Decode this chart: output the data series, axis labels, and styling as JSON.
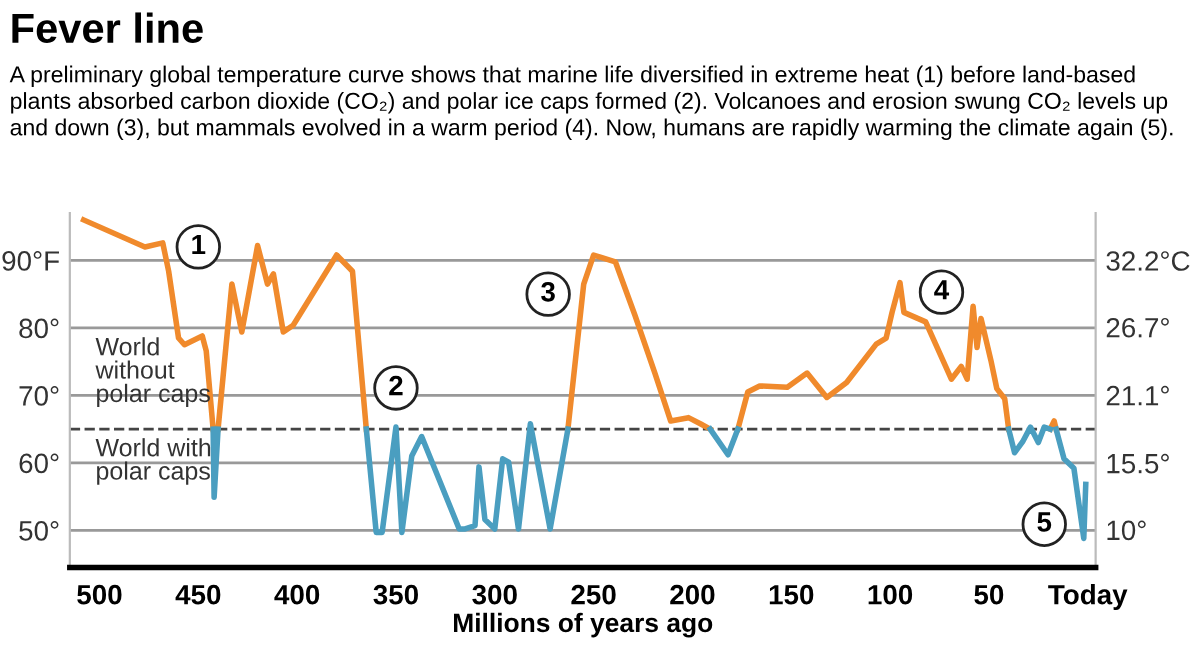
{
  "chart_data": {
    "type": "line",
    "title": "Fever line",
    "subtitle": "A preliminary global temperature curve shows that marine life diversified in extreme heat (1) before land-based plants absorbed carbon dioxide (CO₂) and polar ice caps formed (2). Volcanoes and erosion swung CO₂ levels up and down (3), but mammals evolved in a warm period (4). Now, humans are rapidly warming the climate again (5).",
    "xlabel": "Millions of years ago",
    "x": [
      508,
      477,
      468,
      465,
      460,
      457,
      448,
      446,
      442.5,
      442,
      440,
      433,
      428,
      420,
      415,
      412,
      407,
      402,
      380,
      372,
      365,
      360,
      357,
      350,
      347,
      342,
      337,
      318,
      315,
      310,
      308,
      305,
      300,
      296,
      293,
      288,
      282,
      272,
      263,
      255,
      250,
      239,
      229,
      219,
      211,
      202,
      196,
      191,
      182,
      177,
      172,
      166,
      152,
      142,
      132,
      122,
      107,
      102,
      99,
      95,
      93,
      82,
      69,
      64,
      61,
      58,
      56,
      54,
      49,
      46,
      42,
      40,
      37,
      33,
      29,
      25,
      22,
      19,
      17,
      16,
      12,
      7,
      2,
      1
    ],
    "series": [
      {
        "color": "#f08a2c",
        "values": [
          96,
          92,
          92.6,
          88.4,
          78.5,
          77.5,
          78.8,
          76.6,
          65,
          null,
          65,
          86.5,
          79.4,
          92.2,
          86.5,
          88,
          79.4,
          80.4,
          90.8,
          88.4,
          65,
          null,
          null,
          null,
          null,
          null,
          null,
          null,
          null,
          null,
          null,
          null,
          null,
          null,
          null,
          null,
          null,
          null,
          65,
          86.5,
          90.8,
          89.8,
          81.8,
          73.3,
          66.2,
          66.7,
          65.8,
          65,
          null,
          65,
          70.5,
          71.4,
          71.2,
          73.3,
          69.7,
          71.9,
          77.6,
          78.5,
          82.3,
          86.7,
          82.3,
          80.9,
          72.4,
          74.3,
          72.4,
          83.2,
          77.1,
          81.4,
          75.2,
          71,
          69.5,
          65,
          null,
          null,
          null,
          null,
          null,
          65,
          66.2,
          65,
          null,
          null,
          null,
          null
        ]
      },
      {
        "color": "#4a9ec0",
        "values": [
          null,
          null,
          null,
          null,
          null,
          null,
          null,
          null,
          65,
          54.9,
          65,
          null,
          null,
          null,
          null,
          null,
          null,
          null,
          null,
          null,
          65,
          49.7,
          49.7,
          65.3,
          49.7,
          61,
          63.9,
          50.2,
          50.2,
          50.7,
          59.4,
          51.6,
          50.2,
          60.6,
          60.1,
          50.2,
          65.8,
          50.2,
          65,
          null,
          null,
          null,
          null,
          null,
          null,
          null,
          null,
          65,
          61.2,
          65,
          null,
          null,
          null,
          null,
          null,
          null,
          null,
          null,
          null,
          null,
          null,
          null,
          null,
          null,
          null,
          null,
          null,
          null,
          null,
          null,
          null,
          65,
          61.5,
          63.1,
          65.3,
          63,
          65.3,
          65,
          null,
          65,
          60.6,
          59.2,
          48.8,
          56.8
        ]
      }
    ],
    "xlim": [
      515,
      -4
    ],
    "xticks": [
      500,
      450,
      400,
      350,
      300,
      250,
      200,
      150,
      100,
      50,
      {
        "value": 0,
        "label": "Today"
      }
    ],
    "ylim": [
      44.5,
      97
    ],
    "yticks": [
      {
        "value": 50,
        "label": "50°"
      },
      {
        "value": 60,
        "label": "60°"
      },
      {
        "value": 70,
        "label": "70°"
      },
      {
        "value": 80,
        "label": "80°"
      },
      {
        "value": 90,
        "label": "90°F"
      }
    ],
    "y2lim": [
      6.9,
      36.1
    ],
    "y2ticks": [
      {
        "value": 10,
        "label": "10°"
      },
      {
        "value": 15.5,
        "label": "15.5°"
      },
      {
        "value": 21.1,
        "label": "21.1°"
      },
      {
        "value": 26.7,
        "label": "26.7°"
      },
      {
        "value": 32.2,
        "label": "32.2°C"
      }
    ],
    "grid": "y",
    "ref_lines": [
      {
        "axis": "y",
        "value": 65,
        "color": "#444444",
        "line_style": "dashed"
      }
    ],
    "annotations": [
      "World\nwithout\npolar caps",
      "World with\npolar caps",
      {
        "text": "1",
        "x": 450,
        "y": 92
      },
      {
        "text": "2",
        "x": 350,
        "y": 71.1
      },
      {
        "text": "3",
        "x": 273,
        "y": 85
      },
      {
        "text": "4",
        "x": 74,
        "y": 85.3
      },
      {
        "text": "5",
        "x": 22,
        "y": 50.9
      }
    ]
  }
}
